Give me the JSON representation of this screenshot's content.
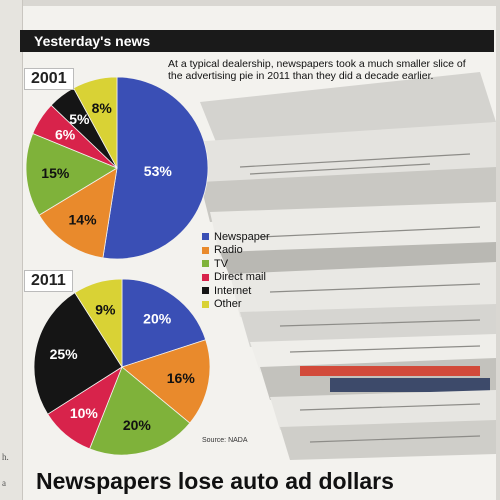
{
  "header": {
    "title": "Yesterday's news"
  },
  "intro_text": "At a typical dealership, newspapers took a much smaller slice of the advertising pie in 2011 than they did a decade earlier.",
  "legend": [
    {
      "label": "Newspaper",
      "color": "#3a4fb5"
    },
    {
      "label": "Radio",
      "color": "#e98a2c"
    },
    {
      "label": "TV",
      "color": "#7fb23a"
    },
    {
      "label": "Direct mail",
      "color": "#d8234b"
    },
    {
      "label": "Internet",
      "color": "#151515"
    },
    {
      "label": "Other",
      "color": "#d9d235"
    }
  ],
  "source": "Source: NADA",
  "headline": "Newspapers lose auto ad dollars",
  "chart_data": [
    {
      "type": "pie",
      "title": "2001",
      "categories": [
        "Newspaper",
        "Radio",
        "TV",
        "Direct mail",
        "Internet",
        "Other"
      ],
      "values": [
        53,
        14,
        15,
        6,
        5,
        8
      ],
      "labels": [
        "53%",
        "14%",
        "15%",
        "6%",
        "5%",
        "8%"
      ]
    },
    {
      "type": "pie",
      "title": "2011",
      "categories": [
        "Newspaper",
        "Radio",
        "TV",
        "Direct mail",
        "Internet",
        "Other"
      ],
      "values": [
        20,
        16,
        20,
        10,
        25,
        9
      ],
      "labels": [
        "20%",
        "16%",
        "20%",
        "10%",
        "25%",
        "9%"
      ]
    }
  ]
}
